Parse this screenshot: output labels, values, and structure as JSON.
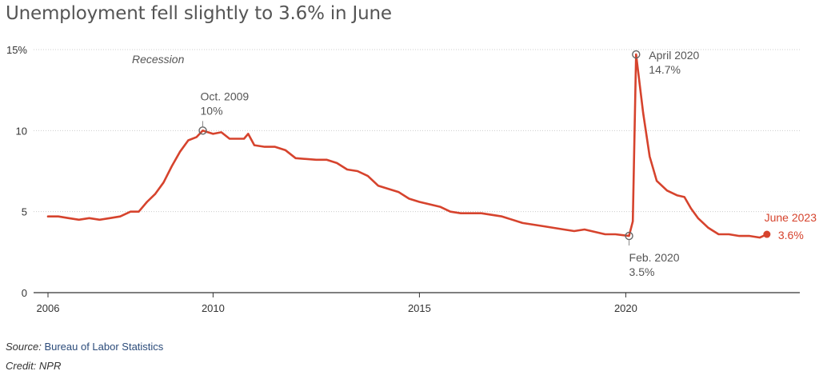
{
  "title": "Unemployment fell slightly to 3.6% in June",
  "footer": {
    "source_label": "Source:",
    "source_value": "Bureau of Labor Statistics",
    "credit": "Credit: NPR"
  },
  "colors": {
    "line": "#d6432d",
    "annotation": "#555555",
    "grid": "#cccccc",
    "axis": "#333333"
  },
  "chart_data": {
    "type": "line",
    "title": "Unemployment fell slightly to 3.6% in June",
    "xlabel": "",
    "ylabel": "",
    "x_ticks": [
      {
        "value": 2006,
        "label": "2006"
      },
      {
        "value": 2010,
        "label": "2010"
      },
      {
        "value": 2015,
        "label": "2015"
      },
      {
        "value": 2020,
        "label": "2020"
      }
    ],
    "y_ticks": [
      {
        "value": 0,
        "label": "0"
      },
      {
        "value": 5,
        "label": "5"
      },
      {
        "value": 10,
        "label": "10"
      },
      {
        "value": 15,
        "label": "15%"
      }
    ],
    "xlim": [
      2005.8,
      2023.6
    ],
    "ylim": [
      0,
      15
    ],
    "grid": "horizontal dotted",
    "recession_label": "Recession",
    "series": [
      {
        "name": "",
        "points": [
          [
            2006.0,
            4.7
          ],
          [
            2006.25,
            4.7
          ],
          [
            2006.5,
            4.6
          ],
          [
            2006.75,
            4.5
          ],
          [
            2007.0,
            4.6
          ],
          [
            2007.25,
            4.5
          ],
          [
            2007.5,
            4.6
          ],
          [
            2007.75,
            4.7
          ],
          [
            2008.0,
            5.0
          ],
          [
            2008.2,
            5.0
          ],
          [
            2008.4,
            5.6
          ],
          [
            2008.6,
            6.1
          ],
          [
            2008.8,
            6.8
          ],
          [
            2009.0,
            7.8
          ],
          [
            2009.2,
            8.7
          ],
          [
            2009.4,
            9.4
          ],
          [
            2009.6,
            9.6
          ],
          [
            2009.75,
            10.0
          ],
          [
            2010.0,
            9.8
          ],
          [
            2010.2,
            9.9
          ],
          [
            2010.4,
            9.5
          ],
          [
            2010.6,
            9.5
          ],
          [
            2010.75,
            9.5
          ],
          [
            2010.85,
            9.8
          ],
          [
            2011.0,
            9.1
          ],
          [
            2011.25,
            9.0
          ],
          [
            2011.5,
            9.0
          ],
          [
            2011.75,
            8.8
          ],
          [
            2012.0,
            8.3
          ],
          [
            2012.5,
            8.2
          ],
          [
            2012.75,
            8.2
          ],
          [
            2013.0,
            8.0
          ],
          [
            2013.25,
            7.6
          ],
          [
            2013.5,
            7.5
          ],
          [
            2013.75,
            7.2
          ],
          [
            2014.0,
            6.6
          ],
          [
            2014.5,
            6.2
          ],
          [
            2014.75,
            5.8
          ],
          [
            2015.0,
            5.6
          ],
          [
            2015.5,
            5.3
          ],
          [
            2015.75,
            5.0
          ],
          [
            2016.0,
            4.9
          ],
          [
            2016.5,
            4.9
          ],
          [
            2016.75,
            4.8
          ],
          [
            2017.0,
            4.7
          ],
          [
            2017.5,
            4.3
          ],
          [
            2017.75,
            4.2
          ],
          [
            2018.0,
            4.1
          ],
          [
            2018.5,
            3.9
          ],
          [
            2018.75,
            3.8
          ],
          [
            2019.0,
            3.9
          ],
          [
            2019.5,
            3.6
          ],
          [
            2019.75,
            3.6
          ],
          [
            2020.08,
            3.5
          ],
          [
            2020.17,
            4.4
          ],
          [
            2020.25,
            14.7
          ],
          [
            2020.42,
            11.1
          ],
          [
            2020.58,
            8.4
          ],
          [
            2020.75,
            6.9
          ],
          [
            2021.0,
            6.3
          ],
          [
            2021.25,
            6.0
          ],
          [
            2021.42,
            5.9
          ],
          [
            2021.58,
            5.2
          ],
          [
            2021.75,
            4.6
          ],
          [
            2022.0,
            4.0
          ],
          [
            2022.25,
            3.6
          ],
          [
            2022.5,
            3.6
          ],
          [
            2022.75,
            3.5
          ],
          [
            2023.0,
            3.5
          ],
          [
            2023.25,
            3.4
          ],
          [
            2023.42,
            3.6
          ]
        ]
      }
    ],
    "annotations": [
      {
        "x": 2009.75,
        "y": 10.0,
        "date": "Oct. 2009",
        "value": "10%",
        "side": "above"
      },
      {
        "x": 2020.25,
        "y": 14.7,
        "date": "April 2020",
        "value": "14.7%",
        "side": "right"
      },
      {
        "x": 2020.08,
        "y": 3.5,
        "date": "Feb. 2020",
        "value": "3.5%",
        "side": "below"
      },
      {
        "x": 2023.42,
        "y": 3.6,
        "date": "June 2023",
        "value": "3.6%",
        "side": "right",
        "highlight": true
      }
    ]
  }
}
